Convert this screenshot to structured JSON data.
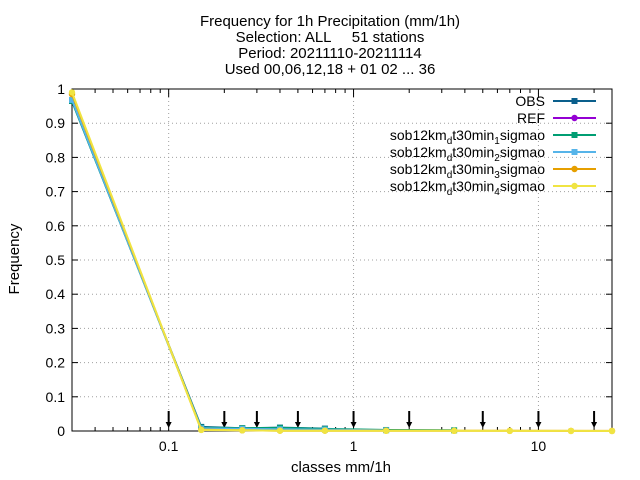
{
  "chart_data": {
    "type": "line",
    "title_lines": [
      "Frequency  for 1h Precipitation (mm/1h)",
      "Selection: ALL     51 stations",
      "Period: 20211110-20211114",
      "Used 00,06,12,18 + 01 02 ... 36"
    ],
    "xlabel": "classes mm/1h",
    "ylabel": "Frequency",
    "x_scale": "log",
    "xlim": [
      0.03,
      25
    ],
    "ylim": [
      0,
      1
    ],
    "x_ticks": [
      {
        "v": 0.1,
        "label": "0.1"
      },
      {
        "v": 1,
        "label": "1"
      },
      {
        "v": 10,
        "label": "10"
      }
    ],
    "y_ticks": [
      {
        "v": 0,
        "label": "0"
      },
      {
        "v": 0.1,
        "label": "0.1"
      },
      {
        "v": 0.2,
        "label": "0.2"
      },
      {
        "v": 0.3,
        "label": "0.3"
      },
      {
        "v": 0.4,
        "label": "0.4"
      },
      {
        "v": 0.5,
        "label": "0.5"
      },
      {
        "v": 0.6,
        "label": "0.6"
      },
      {
        "v": 0.7,
        "label": "0.7"
      },
      {
        "v": 0.8,
        "label": "0.8"
      },
      {
        "v": 0.9,
        "label": "0.9"
      },
      {
        "v": 1,
        "label": "1"
      }
    ],
    "grid": true,
    "legend_position": "top-right",
    "class_marks": [
      0.1,
      0.2,
      0.3,
      0.5,
      1,
      2,
      5,
      10,
      20
    ],
    "series": [
      {
        "name": "OBS",
        "color": "#0a5f8c",
        "marker": "square",
        "x": [
          0.03,
          0.15,
          0.25,
          0.4,
          0.7
        ],
        "y": [
          0.965,
          0.012,
          0.008,
          0.01,
          0.007
        ]
      },
      {
        "name": "REF",
        "color": "#9400d3",
        "marker": "circle",
        "x": [],
        "y": []
      },
      {
        "name": "sob12km_d t30min_1 sigmao",
        "label_parts": [
          "sob12km",
          "d",
          "t30min",
          "1",
          "sigmao"
        ],
        "color": "#009e73",
        "marker": "square",
        "x": [
          0.03,
          0.15,
          0.25,
          0.4,
          0.7,
          1.5,
          3.5
        ],
        "y": [
          0.965,
          0.01,
          0.008,
          0.009,
          0.006,
          0.003,
          0.002
        ]
      },
      {
        "name": "sob12km_d t30min_2 sigmao",
        "label_parts": [
          "sob12km",
          "d",
          "t30min",
          "2",
          "sigmao"
        ],
        "color": "#56b4e9",
        "marker": "square",
        "x": [
          0.03,
          0.15,
          0.25,
          0.4,
          0.7,
          1.5
        ],
        "y": [
          0.968,
          0.008,
          0.006,
          0.005,
          0.004,
          0.002
        ]
      },
      {
        "name": "sob12km_d t30min_3 sigmao",
        "label_parts": [
          "sob12km",
          "d",
          "t30min",
          "3",
          "sigmao"
        ],
        "color": "#e69f00",
        "marker": "circle",
        "x": [
          0.03,
          0.15,
          0.25,
          0.4,
          0.7,
          1.5,
          3.5,
          7,
          15,
          25
        ],
        "y": [
          0.985,
          0.004,
          0.002,
          0.001,
          0.001,
          0.001,
          0.0005,
          0.0005,
          0.0003,
          0.0002
        ]
      },
      {
        "name": "sob12km_d t30min_4 sigmao",
        "label_parts": [
          "sob12km",
          "d",
          "t30min",
          "4",
          "sigmao"
        ],
        "color": "#f0e442",
        "marker": "circle",
        "x": [
          0.03,
          0.15,
          0.25,
          0.4,
          0.7,
          1.5,
          3.5,
          7,
          15,
          25
        ],
        "y": [
          0.99,
          0.003,
          0.002,
          0.001,
          0.001,
          0.0005,
          0.0005,
          0.0003,
          0.0002,
          0.0001
        ]
      }
    ]
  }
}
